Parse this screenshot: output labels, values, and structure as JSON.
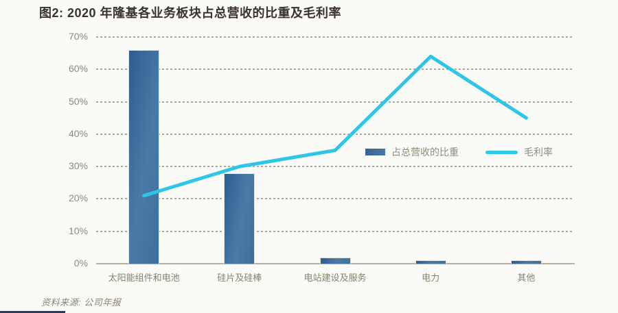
{
  "title": "图2: 2020 年隆基各业务板块占总营收的比重及毛利率",
  "source_note": "资料来源: 公司年报",
  "chart_data": {
    "type": "bar",
    "subtype": "bar-and-line-combo",
    "title": "图2: 2020 年隆基各业务板块占总营收的比重及毛利率",
    "categories": [
      "太阳能组件和电池",
      "硅片及硅棒",
      "电站建设及服务",
      "电力",
      "其他"
    ],
    "series": [
      {
        "name": "占总营收的比重",
        "type": "bar",
        "values": [
          66,
          28,
          2,
          1,
          1
        ],
        "color": "#3f6f9e"
      },
      {
        "name": "毛利率",
        "type": "line",
        "values": [
          21,
          30,
          35,
          64,
          45
        ],
        "color": "#2ec6e6"
      }
    ],
    "ylim": [
      0,
      70
    ],
    "ytick_step": 10,
    "ytick_suffix": "%",
    "grid": "horizontal-dashed",
    "legend_position": "inside-center-right"
  },
  "colors": {
    "background": "#fafaf6",
    "title_text": "#3a322b",
    "axis_text": "#8b8b7a",
    "gridline": "#9a9a88",
    "bar_fill": "#3f6f9e",
    "line": "#2ec6e6",
    "source_text": "#8a8472",
    "footer_strip": "#2b3b55"
  }
}
